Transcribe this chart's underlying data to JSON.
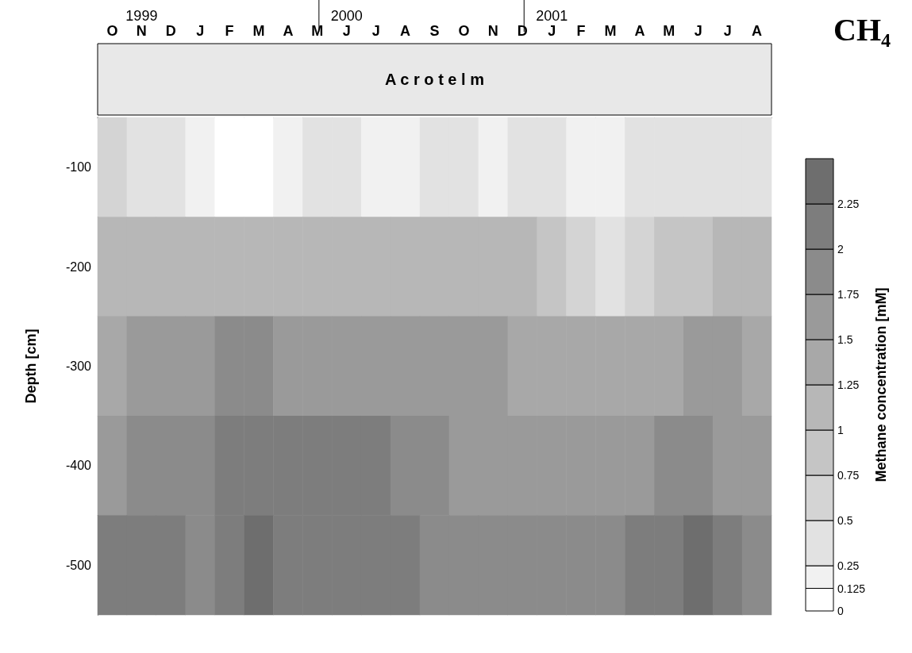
{
  "chart_data": {
    "type": "heatmap",
    "title": "CH₄",
    "ylabel": "Depth [cm]",
    "clabel": "Methane concentration [mM]",
    "categories": [
      "O",
      "N",
      "D",
      "J",
      "F",
      "M",
      "A",
      "M",
      "J",
      "J",
      "A",
      "S",
      "O",
      "N",
      "D",
      "J",
      "F",
      "M",
      "A",
      "M",
      "J",
      "J",
      "A"
    ],
    "y_categories": [
      "-100",
      "-200",
      "-300",
      "-400",
      "-500"
    ],
    "cells": [
      [
        0.6,
        0.4,
        0.3,
        0.2,
        0.1,
        0.1,
        0.2,
        0.25,
        0.3,
        0.2,
        0.2,
        0.3,
        0.3,
        0.2,
        0.25,
        0.25,
        0.2,
        0.2,
        0.3,
        0.3,
        0.3,
        0.3,
        0.3
      ],
      [
        1.1,
        1.2,
        1.2,
        1.1,
        1.0,
        1.0,
        1.1,
        1.1,
        1.0,
        1.1,
        1.1,
        1.1,
        1.1,
        1.1,
        1.0,
        0.8,
        0.6,
        0.4,
        0.5,
        0.8,
        0.9,
        1.0,
        1.1
      ],
      [
        1.4,
        1.6,
        1.6,
        1.7,
        1.9,
        1.9,
        1.7,
        1.6,
        1.6,
        1.7,
        1.7,
        1.6,
        1.6,
        1.5,
        1.4,
        1.4,
        1.4,
        1.4,
        1.4,
        1.4,
        1.5,
        1.5,
        1.4
      ],
      [
        1.7,
        1.9,
        1.9,
        1.8,
        2.0,
        2.1,
        2.1,
        2.1,
        2.0,
        2.0,
        1.9,
        1.8,
        1.6,
        1.6,
        1.6,
        1.6,
        1.6,
        1.7,
        1.6,
        1.8,
        1.8,
        1.7,
        1.6
      ],
      [
        2.0,
        2.1,
        2.0,
        1.9,
        2.2,
        2.3,
        2.1,
        2.0,
        2.1,
        2.1,
        2.0,
        1.9,
        1.9,
        1.8,
        1.8,
        1.8,
        1.8,
        1.9,
        2.1,
        2.2,
        2.3,
        2.1,
        1.9
      ]
    ],
    "clim": [
      0,
      2.5
    ],
    "cticks": [
      0,
      0.125,
      0.25,
      0.5,
      0.75,
      1,
      1.25,
      1.5,
      1.75,
      2,
      2.25
    ],
    "annotations": [
      "1999",
      "2000",
      "2001",
      "A c r o t e l m"
    ]
  }
}
